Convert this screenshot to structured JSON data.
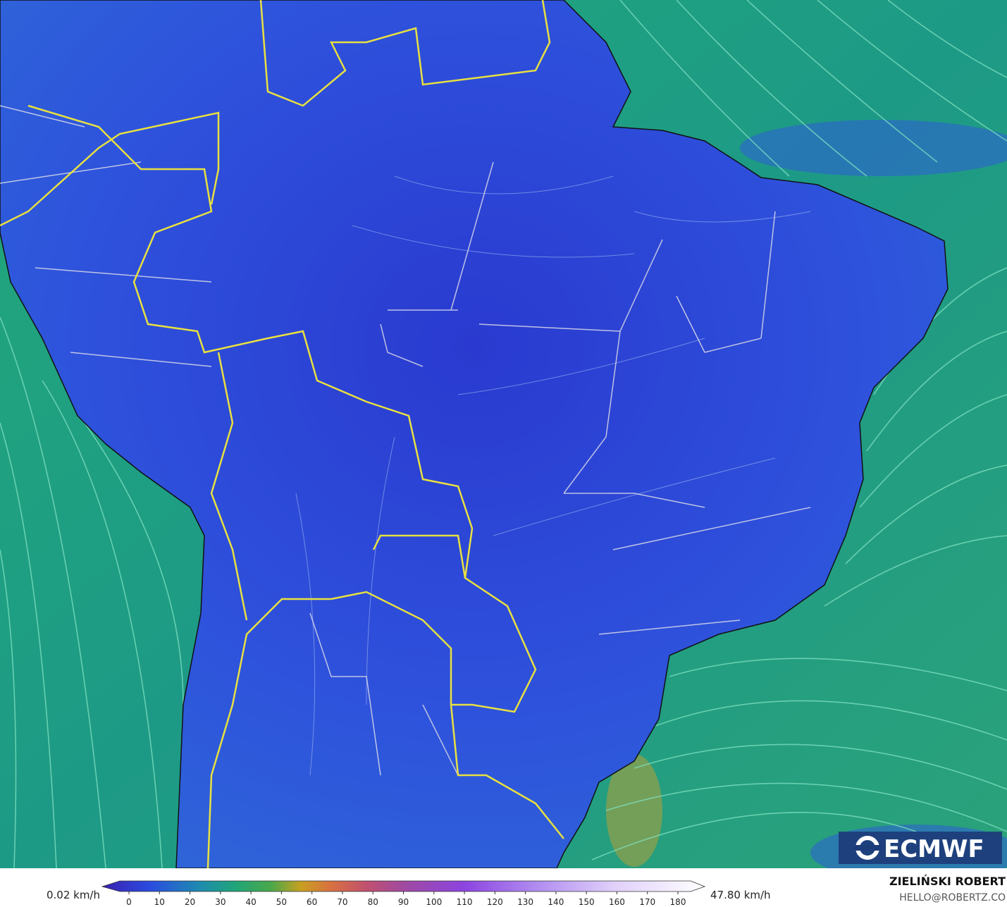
{
  "logo": {
    "text": "ECMWF"
  },
  "colorbar": {
    "min_label": "0.02 km/h",
    "max_label": "47.80 km/h",
    "ticks": [
      0,
      10,
      20,
      30,
      40,
      50,
      60,
      70,
      80,
      90,
      100,
      110,
      120,
      130,
      140,
      150,
      160,
      170,
      180
    ]
  },
  "credit": {
    "author": "ZIELIŃSKI ROBERT",
    "email": "HELLO@ROBERTZ.CO"
  }
}
